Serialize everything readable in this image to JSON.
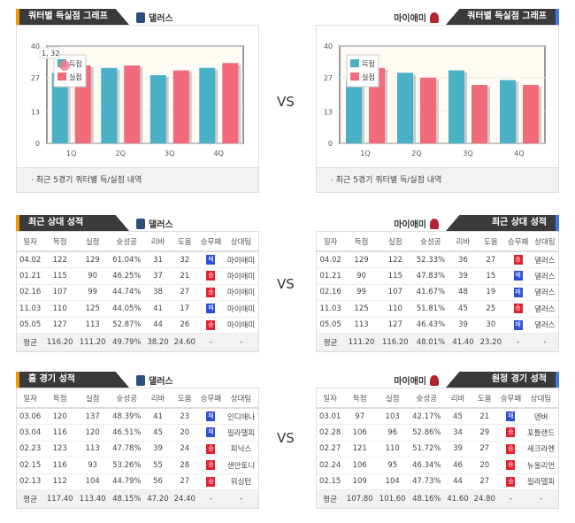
{
  "vs_label": "VS",
  "charts": {
    "title": "쿼터별 득실점 그래프",
    "footer": "· 최근 5경기 쿼터별 득/실점 내역",
    "left_team": "댈러스",
    "right_team": "마이애미",
    "tooltip": "1, 32"
  },
  "chart_data": [
    {
      "type": "bar",
      "team": "댈러스",
      "categories": [
        "1Q",
        "2Q",
        "3Q",
        "4Q"
      ],
      "yticks": [
        "0",
        "13",
        "27",
        "40"
      ],
      "ylim": [
        0,
        40
      ],
      "legend": [
        "득점",
        "실점"
      ],
      "series": [
        {
          "name": "득점",
          "color": "#4ab0c6",
          "values": [
            29,
            31,
            28,
            31
          ]
        },
        {
          "name": "실점",
          "color": "#f26b7a",
          "values": [
            32,
            32,
            30,
            33
          ]
        }
      ]
    },
    {
      "type": "bar",
      "team": "마이애미",
      "categories": [
        "1Q",
        "2Q",
        "3Q",
        "4Q"
      ],
      "yticks": [
        "0",
        "13",
        "27",
        "40"
      ],
      "ylim": [
        0,
        40
      ],
      "legend": [
        "득점",
        "실점"
      ],
      "series": [
        {
          "name": "득점",
          "color": "#4ab0c6",
          "values": [
            26,
            29,
            30,
            26
          ]
        },
        {
          "name": "실점",
          "color": "#f26b7a",
          "values": [
            31,
            27,
            24,
            24
          ]
        }
      ]
    }
  ],
  "columns": [
    "일자",
    "득점",
    "실점",
    "슛성공",
    "리바",
    "도움",
    "승무패",
    "상대팀"
  ],
  "tables": [
    {
      "title": "최근 상대 성적",
      "team": "댈러스",
      "side": "l",
      "rows": [
        [
          "04.02",
          "122",
          "129",
          "61.04%",
          "31",
          "32",
          "패",
          "마이애미"
        ],
        [
          "01.21",
          "115",
          "90",
          "46.25%",
          "37",
          "21",
          "승",
          "마이애미"
        ],
        [
          "02.16",
          "107",
          "99",
          "44.74%",
          "38",
          "27",
          "승",
          "마이애미"
        ],
        [
          "11.03",
          "110",
          "125",
          "44.05%",
          "41",
          "17",
          "패",
          "마이애미"
        ],
        [
          "05.05",
          "127",
          "113",
          "52.87%",
          "44",
          "26",
          "승",
          "마이애미"
        ]
      ],
      "avg": [
        "평균",
        "116.20",
        "111.20",
        "49.79%",
        "38.20",
        "24.60",
        "-",
        "-"
      ]
    },
    {
      "title": "최근 상대 성적",
      "team": "마이애미",
      "side": "r",
      "rows": [
        [
          "04.02",
          "129",
          "122",
          "52.33%",
          "36",
          "27",
          "승",
          "댈러스"
        ],
        [
          "01.21",
          "90",
          "115",
          "47.83%",
          "39",
          "15",
          "패",
          "댈러스"
        ],
        [
          "02.16",
          "99",
          "107",
          "41.67%",
          "48",
          "19",
          "패",
          "댈러스"
        ],
        [
          "11.03",
          "125",
          "110",
          "51.81%",
          "45",
          "25",
          "승",
          "댈러스"
        ],
        [
          "05.05",
          "113",
          "127",
          "46.43%",
          "39",
          "30",
          "패",
          "댈러스"
        ]
      ],
      "avg": [
        "평균",
        "111.20",
        "116.20",
        "48.01%",
        "41.40",
        "23.20",
        "-",
        "-"
      ]
    },
    {
      "title": "홈 경기 성적",
      "team": "댈러스",
      "side": "l",
      "rows": [
        [
          "03.06",
          "120",
          "137",
          "48.39%",
          "41",
          "23",
          "패",
          "인디애나"
        ],
        [
          "03.04",
          "116",
          "120",
          "46.51%",
          "45",
          "20",
          "패",
          "필라델피"
        ],
        [
          "02.23",
          "123",
          "113",
          "47.78%",
          "39",
          "24",
          "승",
          "피닉스"
        ],
        [
          "02.15",
          "116",
          "93",
          "53.26%",
          "55",
          "28",
          "승",
          "샌안토니"
        ],
        [
          "02.13",
          "112",
          "104",
          "44.79%",
          "56",
          "27",
          "승",
          "워싱턴"
        ]
      ],
      "avg": [
        "평균",
        "117.40",
        "113.40",
        "48.15%",
        "47.20",
        "24.40",
        "-",
        "-"
      ]
    },
    {
      "title": "원정 경기 성적",
      "team": "마이애미",
      "side": "r",
      "rows": [
        [
          "03.01",
          "97",
          "103",
          "42.17%",
          "45",
          "21",
          "패",
          "덴버"
        ],
        [
          "02.28",
          "106",
          "96",
          "52.86%",
          "34",
          "29",
          "승",
          "포틀랜드"
        ],
        [
          "02.27",
          "121",
          "110",
          "51.72%",
          "39",
          "27",
          "승",
          "새크라멘"
        ],
        [
          "02.24",
          "106",
          "95",
          "46.34%",
          "46",
          "20",
          "승",
          "뉴올리언"
        ],
        [
          "02.15",
          "109",
          "104",
          "47.73%",
          "44",
          "27",
          "승",
          "필라델피"
        ]
      ],
      "avg": [
        "평균",
        "107.80",
        "101.60",
        "48.16%",
        "41.60",
        "24.80",
        "-",
        "-"
      ]
    }
  ],
  "colors": {
    "win": "#e0202e",
    "loss": "#2b4fd6"
  }
}
